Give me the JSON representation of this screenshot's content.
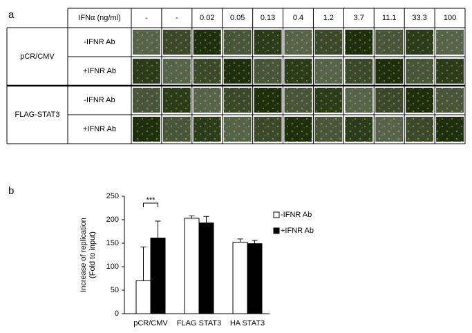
{
  "panel_labels": [
    "a",
    "b"
  ],
  "table": {
    "header_label": "IFNα (ng/ml)",
    "columns": [
      "-",
      "-",
      "0.02",
      "0.05",
      "0.13",
      "0.4",
      "1.2",
      "3.7",
      "11.1",
      "33.3",
      "100"
    ],
    "groups": [
      {
        "name": "pCR/CMV",
        "rows": [
          "-IFNR Ab",
          "+IFNR Ab"
        ]
      },
      {
        "name": "FLAG-STAT3",
        "rows": [
          "-IFNR Ab",
          "+IFNR Ab"
        ]
      }
    ]
  },
  "chart_data": {
    "type": "bar",
    "ylabel": [
      "Increase of replication",
      "(Fold to input)"
    ],
    "categories": [
      "pCR/CMV",
      "FLAG STAT3",
      "HA STAT3"
    ],
    "series": [
      {
        "name": "-IFNR Ab",
        "color": "#ffffff",
        "values": [
          70,
          203,
          152
        ],
        "errors": [
          72,
          5,
          7
        ]
      },
      {
        "name": "+IFNR Ab",
        "color": "#000000",
        "values": [
          161,
          193,
          149
        ],
        "errors": [
          36,
          14,
          7
        ]
      }
    ],
    "ylim": [
      0,
      250
    ],
    "yticks": [
      0,
      50,
      100,
      150,
      200,
      250
    ],
    "annotation": "***"
  }
}
